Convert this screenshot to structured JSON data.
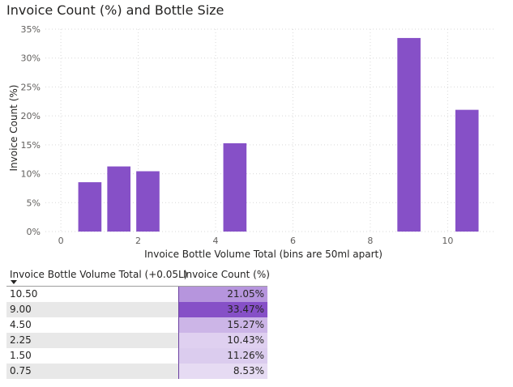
{
  "title": "Invoice Count (%) and Bottle Size",
  "chart_data": {
    "type": "bar",
    "title": "Invoice Count (%) and Bottle Size",
    "xlabel": "Invoice Bottle Volume Total (bins are 50ml apart)",
    "ylabel": "Invoice Count (%)",
    "xlim": [
      -0.4,
      11.25
    ],
    "ylim": [
      0,
      35
    ],
    "x_ticks": [
      0,
      2,
      4,
      6,
      8,
      10
    ],
    "y_ticks": [
      "0%",
      "5%",
      "10%",
      "15%",
      "20%",
      "25%",
      "30%",
      "35%"
    ],
    "bin_width": 0.6,
    "bars": [
      {
        "x": 0.75,
        "value": 8.53
      },
      {
        "x": 1.5,
        "value": 11.26
      },
      {
        "x": 2.25,
        "value": 10.43
      },
      {
        "x": 4.5,
        "value": 15.27
      },
      {
        "x": 9.0,
        "value": 33.47
      },
      {
        "x": 10.5,
        "value": 21.05
      }
    ],
    "bar_color": "#8650c7",
    "grid": true
  },
  "table": {
    "headers": {
      "volume": "Invoice Bottle Volume Total (+0.05L)",
      "count": "Invoice Count (%)"
    },
    "sort_icon": "sort-descending-icon",
    "rows": [
      {
        "volume": "10.50",
        "count": "21.05%",
        "value": 21.05
      },
      {
        "volume": "9.00",
        "count": "33.47%",
        "value": 33.47
      },
      {
        "volume": "4.50",
        "count": "15.27%",
        "value": 15.27
      },
      {
        "volume": "2.25",
        "count": "10.43%",
        "value": 10.43
      },
      {
        "volume": "1.50",
        "count": "11.26%",
        "value": 11.26
      },
      {
        "volume": "0.75",
        "count": "8.53%",
        "value": 8.53
      }
    ]
  }
}
